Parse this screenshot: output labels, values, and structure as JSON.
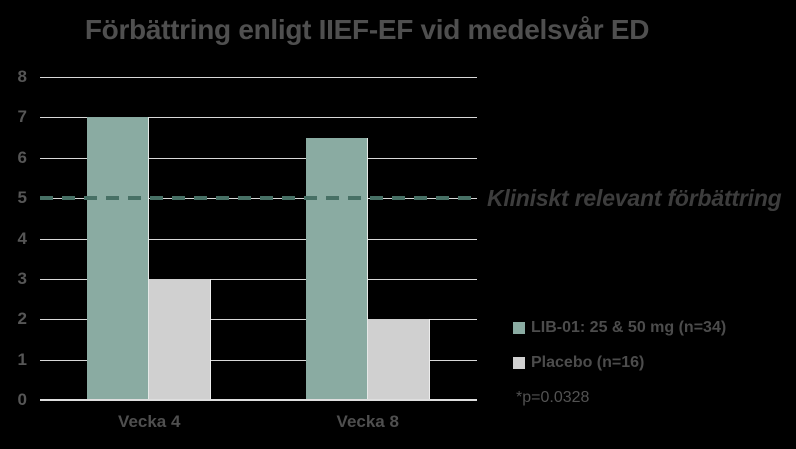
{
  "chart_data": {
    "type": "bar",
    "title": "Förbättring enligt IIEF-EF vid medelsvår ED",
    "categories": [
      "Vecka 4",
      "Vecka 8"
    ],
    "series": [
      {
        "name": "LIB-01: 25 & 50 mg (n=34)",
        "color": "#8AABA2",
        "values": [
          7,
          6.5
        ]
      },
      {
        "name": "Placebo (n=16)",
        "color": "#D0D0D0",
        "values": [
          3,
          2
        ]
      }
    ],
    "ylim": [
      0,
      8
    ],
    "yticks": [
      0,
      1,
      2,
      3,
      4,
      5,
      6,
      7,
      8
    ],
    "grid": true,
    "legend_position": "right",
    "background": "#000000",
    "gridline_color": "#D8D8D8",
    "reference_line": {
      "value": 5,
      "label": "Kliniskt relevant förbättring",
      "style": "dashed",
      "color": "#477065"
    },
    "annotation": "*p=0.0328"
  }
}
